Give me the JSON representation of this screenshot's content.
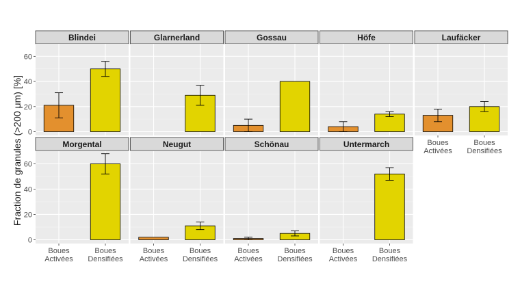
{
  "chart_data": {
    "type": "bar",
    "ylabel": "Fraction de granules (>200 μm) [%]",
    "categories": [
      "Boues Activées",
      "Boues Densifiées"
    ],
    "category_lines": [
      [
        "Boues",
        "Activées"
      ],
      [
        "Boues",
        "Densifiées"
      ]
    ],
    "yticks": [
      0,
      20,
      40,
      60
    ],
    "ylim": [
      -3,
      70
    ],
    "grid": true,
    "colors": {
      "Boues Activées": "#e3902e",
      "Boues Densifiées": "#e2d400"
    },
    "panels": [
      {
        "name": "Blindei",
        "values": [
          21,
          50
        ],
        "err_low": [
          11,
          44
        ],
        "err_high": [
          31,
          56
        ]
      },
      {
        "name": "Glarnerland",
        "values": [
          null,
          29
        ],
        "err_low": [
          null,
          21
        ],
        "err_high": [
          null,
          37
        ]
      },
      {
        "name": "Gossau",
        "values": [
          5,
          40
        ],
        "err_low": [
          0,
          null
        ],
        "err_high": [
          10,
          null
        ]
      },
      {
        "name": "Höfe",
        "values": [
          4,
          14
        ],
        "err_low": [
          0,
          12
        ],
        "err_high": [
          8,
          16
        ]
      },
      {
        "name": "Laufäcker",
        "values": [
          13,
          20
        ],
        "err_low": [
          8,
          16
        ],
        "err_high": [
          18,
          24
        ]
      },
      {
        "name": "Morgental",
        "values": [
          null,
          60
        ],
        "err_low": [
          null,
          52
        ],
        "err_high": [
          null,
          68
        ]
      },
      {
        "name": "Neugut",
        "values": [
          2,
          11
        ],
        "err_low": [
          null,
          8
        ],
        "err_high": [
          null,
          14
        ]
      },
      {
        "name": "Schönau",
        "values": [
          1,
          5
        ],
        "err_low": [
          0,
          3
        ],
        "err_high": [
          2,
          7
        ]
      },
      {
        "name": "Untermarch",
        "values": [
          null,
          52
        ],
        "err_low": [
          null,
          47
        ],
        "err_high": [
          null,
          57
        ]
      }
    ]
  }
}
